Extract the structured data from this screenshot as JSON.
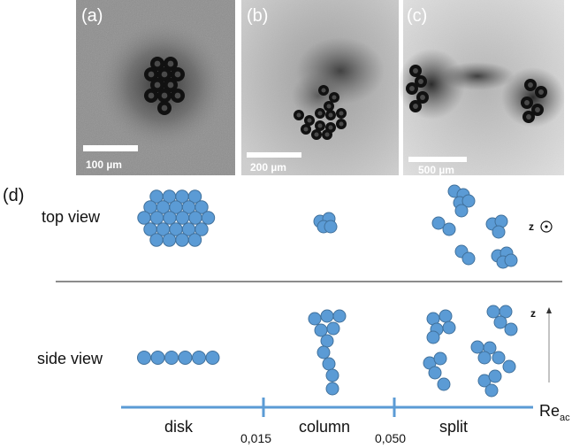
{
  "panels": {
    "a": {
      "label": "(a)",
      "scale_label": "100 µm"
    },
    "b": {
      "label": "(b)",
      "scale_label": "200 µm"
    },
    "c": {
      "label": "(c)",
      "scale_label": "500 µm"
    }
  },
  "diagram": {
    "label": "(d)",
    "top_view_label": "top view",
    "side_view_label": "side view",
    "axis": {
      "name": "Re",
      "subscript": "ac",
      "regimes": [
        "disk",
        "column",
        "split"
      ],
      "thresholds": [
        "0,015",
        "0,050"
      ]
    },
    "z_symbol": "z",
    "colors": {
      "sphere": "#5b9bd5",
      "sphere_stroke": "#41719c",
      "axis": "#5b9bd5",
      "divider": "#666666"
    }
  }
}
